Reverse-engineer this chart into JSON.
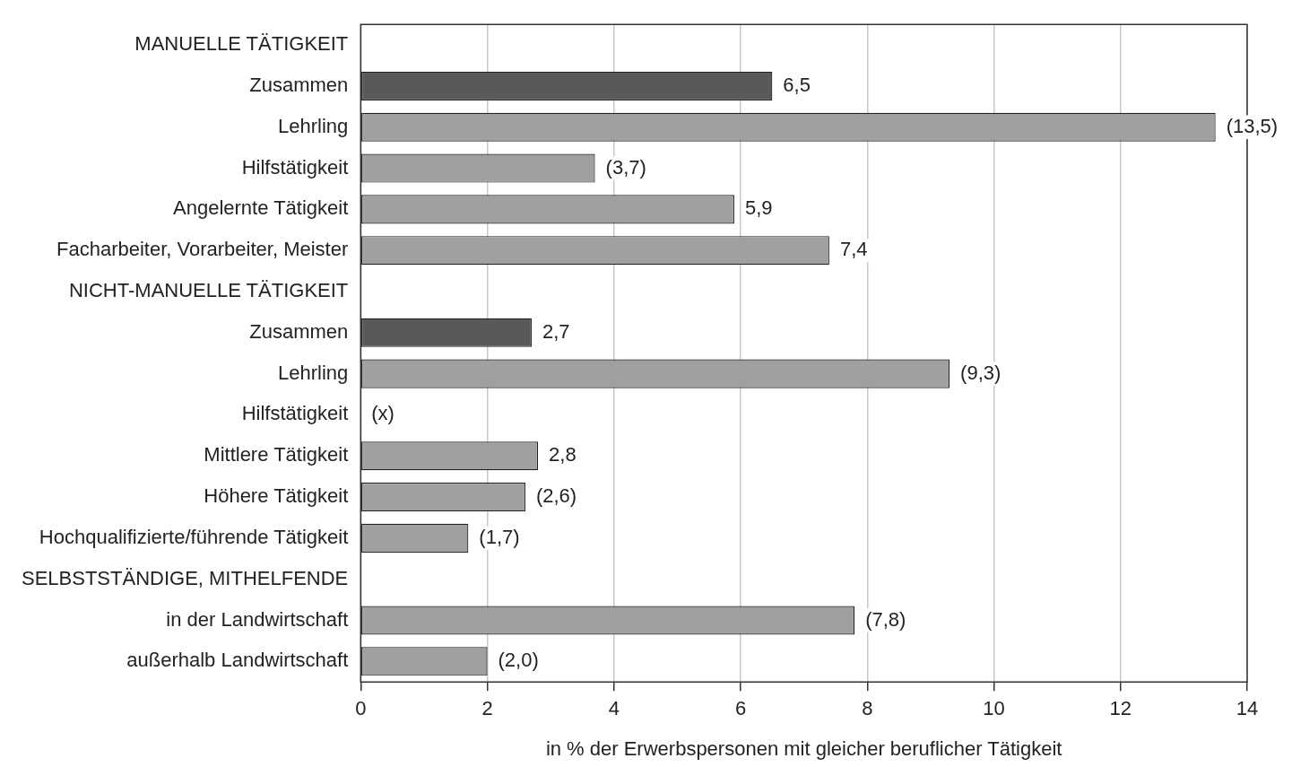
{
  "chart_data": {
    "type": "bar",
    "orientation": "horizontal",
    "xlabel": "in % der Erwerbspersonen mit gleicher beruflicher Tätigkeit",
    "categories": [
      "MANUELLE TÄTIGKEIT",
      "Zusammen",
      "Lehrling",
      "Hilfstätigkeit",
      "Angelernte Tätigkeit",
      "Facharbeiter, Vorarbeiter, Meister",
      "NICHT-MANUELLE TÄTIGKEIT",
      "Zusammen",
      "Lehrling",
      "Hilfstätigkeit",
      "Mittlere Tätigkeit",
      "Höhere Tätigkeit",
      "Hochqualifizierte/führende Tätigkeit",
      "SELBSTSTÄNDIGE, MITHELFENDE",
      "in der Landwirtschaft",
      "außerhalb Landwirtschaft"
    ],
    "values": [
      null,
      6.5,
      13.5,
      3.7,
      5.9,
      7.4,
      null,
      2.7,
      9.3,
      null,
      2.8,
      2.6,
      1.7,
      null,
      7.8,
      2.0
    ],
    "value_labels": [
      null,
      "6,5",
      "(13,5)",
      "(3,7)",
      "5,9",
      "7,4",
      null,
      "2,7",
      "(9,3)",
      "(x)",
      "2,8",
      "(2,6)",
      "(1,7)",
      null,
      "(7,8)",
      "(2,0)"
    ],
    "colors": [
      "#a0a0a0",
      "#595959",
      "#a0a0a0",
      "#a0a0a0",
      "#a0a0a0",
      "#a0a0a0",
      "#a0a0a0",
      "#595959",
      "#a0a0a0",
      "#a0a0a0",
      "#a0a0a0",
      "#a0a0a0",
      "#a0a0a0",
      "#a0a0a0",
      "#a0a0a0",
      "#a0a0a0"
    ],
    "xlim": [
      0,
      14
    ],
    "xticks": [
      0,
      2,
      4,
      6,
      8,
      10,
      12,
      14
    ],
    "grid": "x",
    "legend": false
  }
}
